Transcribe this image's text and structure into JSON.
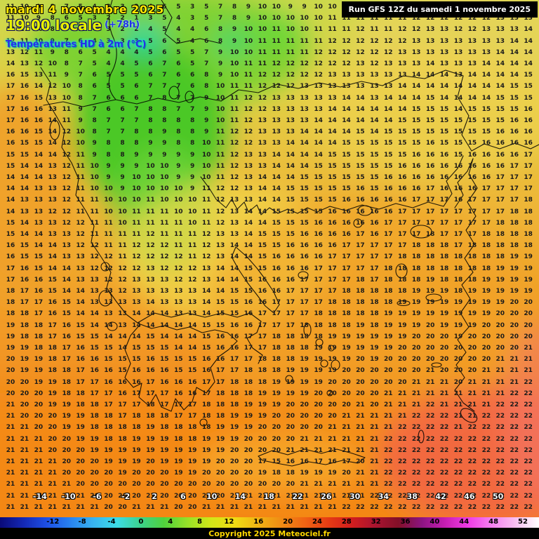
{
  "header": {
    "date_line": "mardi 4 novembre 2025",
    "time_line": "19:00 locale",
    "forecast_offset": "(+78h)",
    "parameter": "Températures HD à 2m (°C)",
    "run_info": "Run GFS 12Z du samedi 1 novembre 2025"
  },
  "footer": {
    "copyright": "Copyright 2025 Meteociel.fr"
  },
  "colorbar": {
    "labels_above": [
      "-14",
      "-10",
      "-6",
      "-2",
      "2",
      "6",
      "10",
      "14",
      "18",
      "22",
      "26",
      "30",
      "34",
      "38",
      "42",
      "46",
      "50"
    ],
    "labels_on_bar": [
      "-12",
      "-8",
      "-4",
      "0",
      "4",
      "8",
      "12",
      "16",
      "20",
      "24",
      "28",
      "32",
      "36",
      "40",
      "44",
      "48",
      "52"
    ],
    "colors": [
      "#0a0a78",
      "#1428b4",
      "#1e50e6",
      "#2882f0",
      "#38b4f0",
      "#3cdce6",
      "#3cd28c",
      "#50d23c",
      "#96e128",
      "#d2e618",
      "#f0dc14",
      "#f0b414",
      "#f08c14",
      "#f06414",
      "#e63c14",
      "#d21e1e",
      "#aa1430",
      "#821028",
      "#8c1482",
      "#c81eb4",
      "#f03ce6",
      "#f582f0",
      "#f9c0f2",
      "#ffffff"
    ]
  },
  "map": {
    "region": "Greece - Aegean",
    "grid_rows": [
      "11 10 9 8 7 5 4 3 3 2 4 6 5 3 5 7 8 9 10 10 9 9 10 10 11 11 10 10 11 12 12 12 11 11 12 12 13 13",
      "11 10 9 8 6 5 3 2 2 1 3 5 4 3 5 7 8 9 10 10 10 10 10 11 11 11 11 11 11 12 12 12 12 12 12 13 13 13",
      "12 11 10 8 7 5 4 3 2 2 4 5 4 4 6 8 9 10 10 11 10 10 11 11 11 12 11 11 12 12 13 13 12 12 13 13 13 14",
      "12 11 10 9 7 6 4 3 3 3 5 6 5 4 6 8 9 10 11 11 11 11 11 12 12 12 12 12 12 13 13 13 13 13 13 13 14 14",
      "13 12 11 9 8 6 5 4 4 4 5 6 5 5 7 9 10 10 11 11 11 11 12 12 12 12 12 12 13 13 13 13 13 13 13 14 14 14",
      "14 13 12 10 8 7 5 4 4 5 6 7 6 5 7 9 10 11 11 12 12 12 12 12 12 13 12 13 13 13 14 13 13 13 14 14 14 14",
      "16 15 13 11 9 7 6 5 5 5 6 7 6 6 8 9 10 11 12 12 12 12 12 13 13 13 13 13 13 14 14 14 13 14 14 14 14 15",
      "17 16 14 12 10 8 6 5 5 6 7 7 7 6 8 10 11 11 12 12 12 13 13 13 13 13 13 13 14 14 14 14 14 14 14 14 15 15",
      "17 16 15 13 10 8 7 6 6 6 7 8 7 7 9 10 11 12 12 13 13 13 13 13 14 14 13 14 14 14 15 14 14 14 14 15 15 15",
      "17 16 16 13 11 9 7 6 6 7 8 8 7 7 9 10 11 12 12 13 13 13 13 14 14 14 14 14 14 15 15 15 14 15 15 15 15 16",
      "17 16 16 14 11 9 8 7 7 7 8 8 8 8 9 10 11 12 13 13 13 13 14 14 14 14 14 14 15 15 15 15 15 15 15 15 16 16",
      "16 16 15 14 12 10 8 7 7 8 8 9 8 8 9 11 12 12 13 13 13 14 14 14 14 15 14 15 15 15 15 15 15 15 15 16 16 16",
      "16 15 15 14 12 10 9 8 8 8 9 9 8 8 10 11 12 12 13 13 14 14 14 14 15 15 15 15 15 15 16 15 15 15 16 16 16 16",
      "15 15 14 14 12 11 9 8 8 9 9 9 9 9 10 11 12 13 13 14 14 14 14 15 15 15 15 15 15 16 16 16 15 16 16 16 16 17",
      "15 14 14 13 12 11 10 9 9 9 10 10 9 9 10 11 12 13 13 14 14 14 15 15 15 15 15 15 16 16 16 16 16 16 16 16 17 17",
      "14 14 14 13 12 11 10 9 9 10 10 10 9 9 10 11 12 13 14 14 14 15 15 15 15 15 15 16 16 16 16 16 16 16 16 17 17 17",
      "14 14 13 13 12 11 10 10 9 10 10 10 10 9 11 12 12 13 14 14 15 15 15 15 15 16 15 16 16 16 17 16 16 16 17 17 17 17",
      "14 13 13 13 12 11 11 10 10 10 11 10 10 10 11 12 13 13 14 14 15 15 15 15 16 16 16 16 16 17 17 17 16 17 17 17 17 18",
      "14 13 13 12 12 11 11 10 10 11 11 11 10 10 11 12 13 14 14 15 15 15 15 16 16 16 16 16 17 17 17 17 17 17 17 17 18 18",
      "15 14 13 13 12 12 11 11 10 11 11 11 11 10 11 12 13 14 14 15 15 15 16 16 16 16 16 17 17 17 17 17 17 17 17 18 18 18",
      "15 14 14 13 13 12 11 11 11 11 12 11 11 11 12 13 13 14 15 15 15 16 16 16 16 17 16 17 17 17 18 17 17 17 18 18 18 18",
      "16 15 14 14 13 12 12 11 11 12 12 12 11 11 12 13 14 14 15 15 16 16 16 16 17 17 17 17 17 18 18 18 17 18 18 18 18 18",
      "16 15 15 14 13 13 12 12 11 12 12 12 12 11 12 13 14 14 15 16 16 16 16 17 17 17 17 17 18 18 18 18 18 18 18 18 19 19",
      "17 16 15 14 14 13 12 12 12 12 13 12 12 12 13 14 14 15 15 16 16 16 17 17 17 17 17 18 18 18 18 18 18 18 18 19 19 19",
      "17 16 16 15 14 13 13 12 12 13 13 13 12 12 13 14 14 15 16 16 16 17 17 17 17 18 17 18 18 18 19 18 18 18 19 19 19 19",
      "18 17 16 15 14 14 13 13 12 13 13 13 13 13 14 14 15 15 16 16 17 17 17 17 18 18 18 18 18 19 19 19 18 19 19 19 19 19",
      "18 17 17 16 15 14 13 13 13 13 14 13 13 13 14 15 15 16 16 17 17 17 17 18 18 18 18 18 19 19 19 19 19 19 19 19 20 20",
      "18 18 17 16 15 14 14 13 13 14 14 14 13 13 14 15 15 16 17 17 17 17 18 18 18 18 18 19 19 19 19 19 19 19 19 20 20 20",
      "19 18 18 17 16 15 14 14 13 14 14 14 14 14 15 15 16 16 17 17 17 18 18 18 18 19 18 19 19 19 20 19 19 19 20 20 20 20",
      "19 18 18 17 16 15 15 14 14 14 15 14 14 14 15 16 16 17 17 18 18 18 18 19 19 19 19 19 19 20 20 20 19 20 20 20 20 20",
      "19 19 18 18 17 16 15 15 14 15 15 15 14 14 15 16 16 17 17 18 18 18 19 19 19 19 19 19 20 20 20 20 20 20 20 20 20 21",
      "20 19 19 18 17 16 16 15 15 15 16 15 15 15 16 16 17 17 18 18 18 19 19 19 19 20 19 20 20 20 20 20 20 20 20 21 21 21",
      "20 19 19 18 18 17 16 16 15 16 16 16 15 15 16 17 17 18 18 18 19 19 19 19 20 20 20 20 20 20 21 20 20 20 21 21 21 21",
      "20 20 19 19 18 17 17 16 16 16 17 16 16 16 17 17 18 18 18 19 19 19 19 20 20 20 20 20 20 21 21 21 20 21 21 21 21 22",
      "20 20 20 19 18 18 17 17 16 17 17 17 16 16 17 18 18 18 19 19 19 19 20 20 20 20 20 21 21 21 21 21 21 21 21 21 22 22",
      "21 20 20 19 19 18 18 17 17 17 18 17 17 17 18 18 18 19 19 19 20 20 20 20 20 21 20 21 21 21 22 21 21 21 21 22 22 22",
      "21 20 20 20 19 19 18 18 17 18 18 18 17 17 18 18 19 19 19 20 20 20 20 20 21 21 21 21 21 22 22 22 21 21 22 22 22 22",
      "21 21 20 20 19 19 18 18 18 18 19 18 18 18 18 19 19 19 20 20 20 20 20 21 21 21 21 21 22 22 22 22 21 22 22 22 22 22",
      "21 21 21 20 20 19 19 18 18 19 19 19 18 18 19 19 19 20 20 20 20 21 21 21 21 21 21 22 22 22 22 22 22 22 22 22 22 22",
      "21 21 21 20 20 20 19 19 19 19 19 19 19 19 19 19 20 20 20 20 21 21 21 21 21 21 21 22 22 22 22 22 22 22 22 22 22 22",
      "21 21 21 21 20 20 20 19 19 19 20 19 19 19 19 20 20 20 17 15 16 16 17 16 17 20 21 22 22 22 22 22 22 22 22 22 22 22",
      "21 21 21 21 20 20 20 20 19 20 20 20 19 19 20 20 20 20 19 18 18 19 19 19 20 21 21 22 22 22 22 22 22 22 22 22 22 22",
      "21 21 21 21 21 20 20 20 20 20 20 20 20 20 20 20 20 20 20 20 20 21 21 21 21 21 21 22 22 22 22 22 22 22 22 22 22 22",
      "21 21 21 21 21 21 20 20 20 20 21 20 20 20 20 20 21 21 21 21 21 21 21 21 21 21 22 22 22 22 22 22 22 22 22 22 22 22",
      "21 21 21 21 21 21 21 20 20 21 21 21 20 20 21 21 21 21 21 21 21 21 21 21 22 22 22 22 22 22 22 22 22 22 22 22 22 22"
    ]
  }
}
